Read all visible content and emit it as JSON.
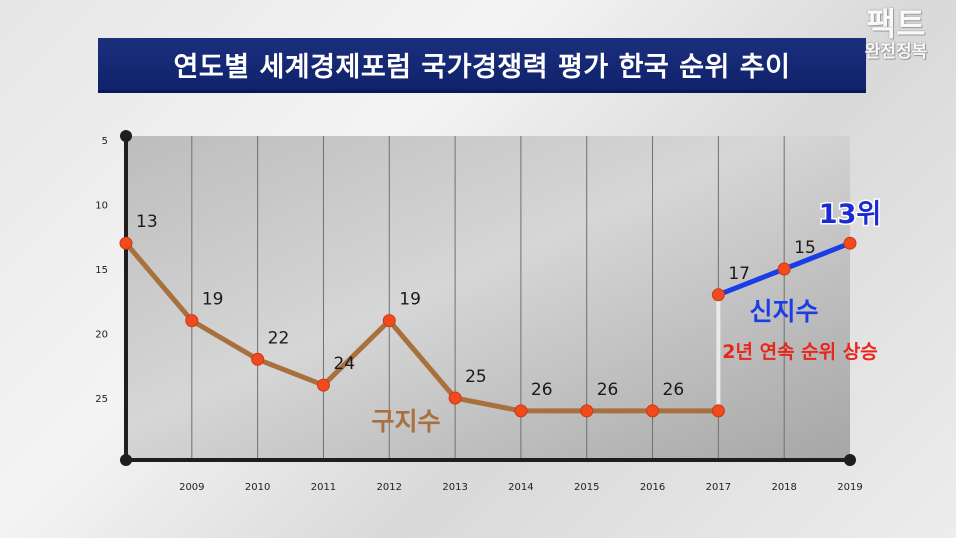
{
  "header": {
    "title": "연도별 세계경제포럼 국가경쟁력 평가 한국 순위 추이"
  },
  "watermark": {
    "line1": "팩트",
    "line2": "완전정복"
  },
  "chart_data": {
    "type": "line",
    "title": "연도별 세계경제포럼 국가경쟁력 평가 한국 순위 추이",
    "x": [
      "2008",
      "2009",
      "2010",
      "2011",
      "2012",
      "2013",
      "2014",
      "2015",
      "2016",
      "2017",
      "2018",
      "2019"
    ],
    "x_tick_labels": [
      "2009",
      "2010",
      "2011",
      "2012",
      "2013",
      "2014",
      "2015",
      "2016",
      "2017",
      "2018",
      "2019"
    ],
    "y_ticks": [
      5,
      10,
      15,
      20,
      25
    ],
    "ylim": [
      5,
      29
    ],
    "y_inverted": true,
    "grid": true,
    "series": [
      {
        "name": "구지수",
        "color": "#a8703c",
        "x": [
          "2008",
          "2009",
          "2010",
          "2011",
          "2012",
          "2013",
          "2014",
          "2015",
          "2016",
          "2017"
        ],
        "values": [
          13,
          19,
          22,
          24,
          19,
          25,
          26,
          26,
          26,
          26
        ],
        "labels": [
          "13",
          "19",
          "22",
          "24",
          "19",
          "25",
          "26",
          "26",
          "26",
          ""
        ]
      },
      {
        "name": "신지수",
        "color": "#1a3de6",
        "x": [
          "2017",
          "2018",
          "2019"
        ],
        "values": [
          17,
          15,
          13
        ],
        "labels": [
          "17",
          "15",
          "13위"
        ]
      }
    ],
    "annotations": {
      "new_index_note": "2년 연속 순위 상승"
    },
    "point_color": "#f24a1c"
  }
}
